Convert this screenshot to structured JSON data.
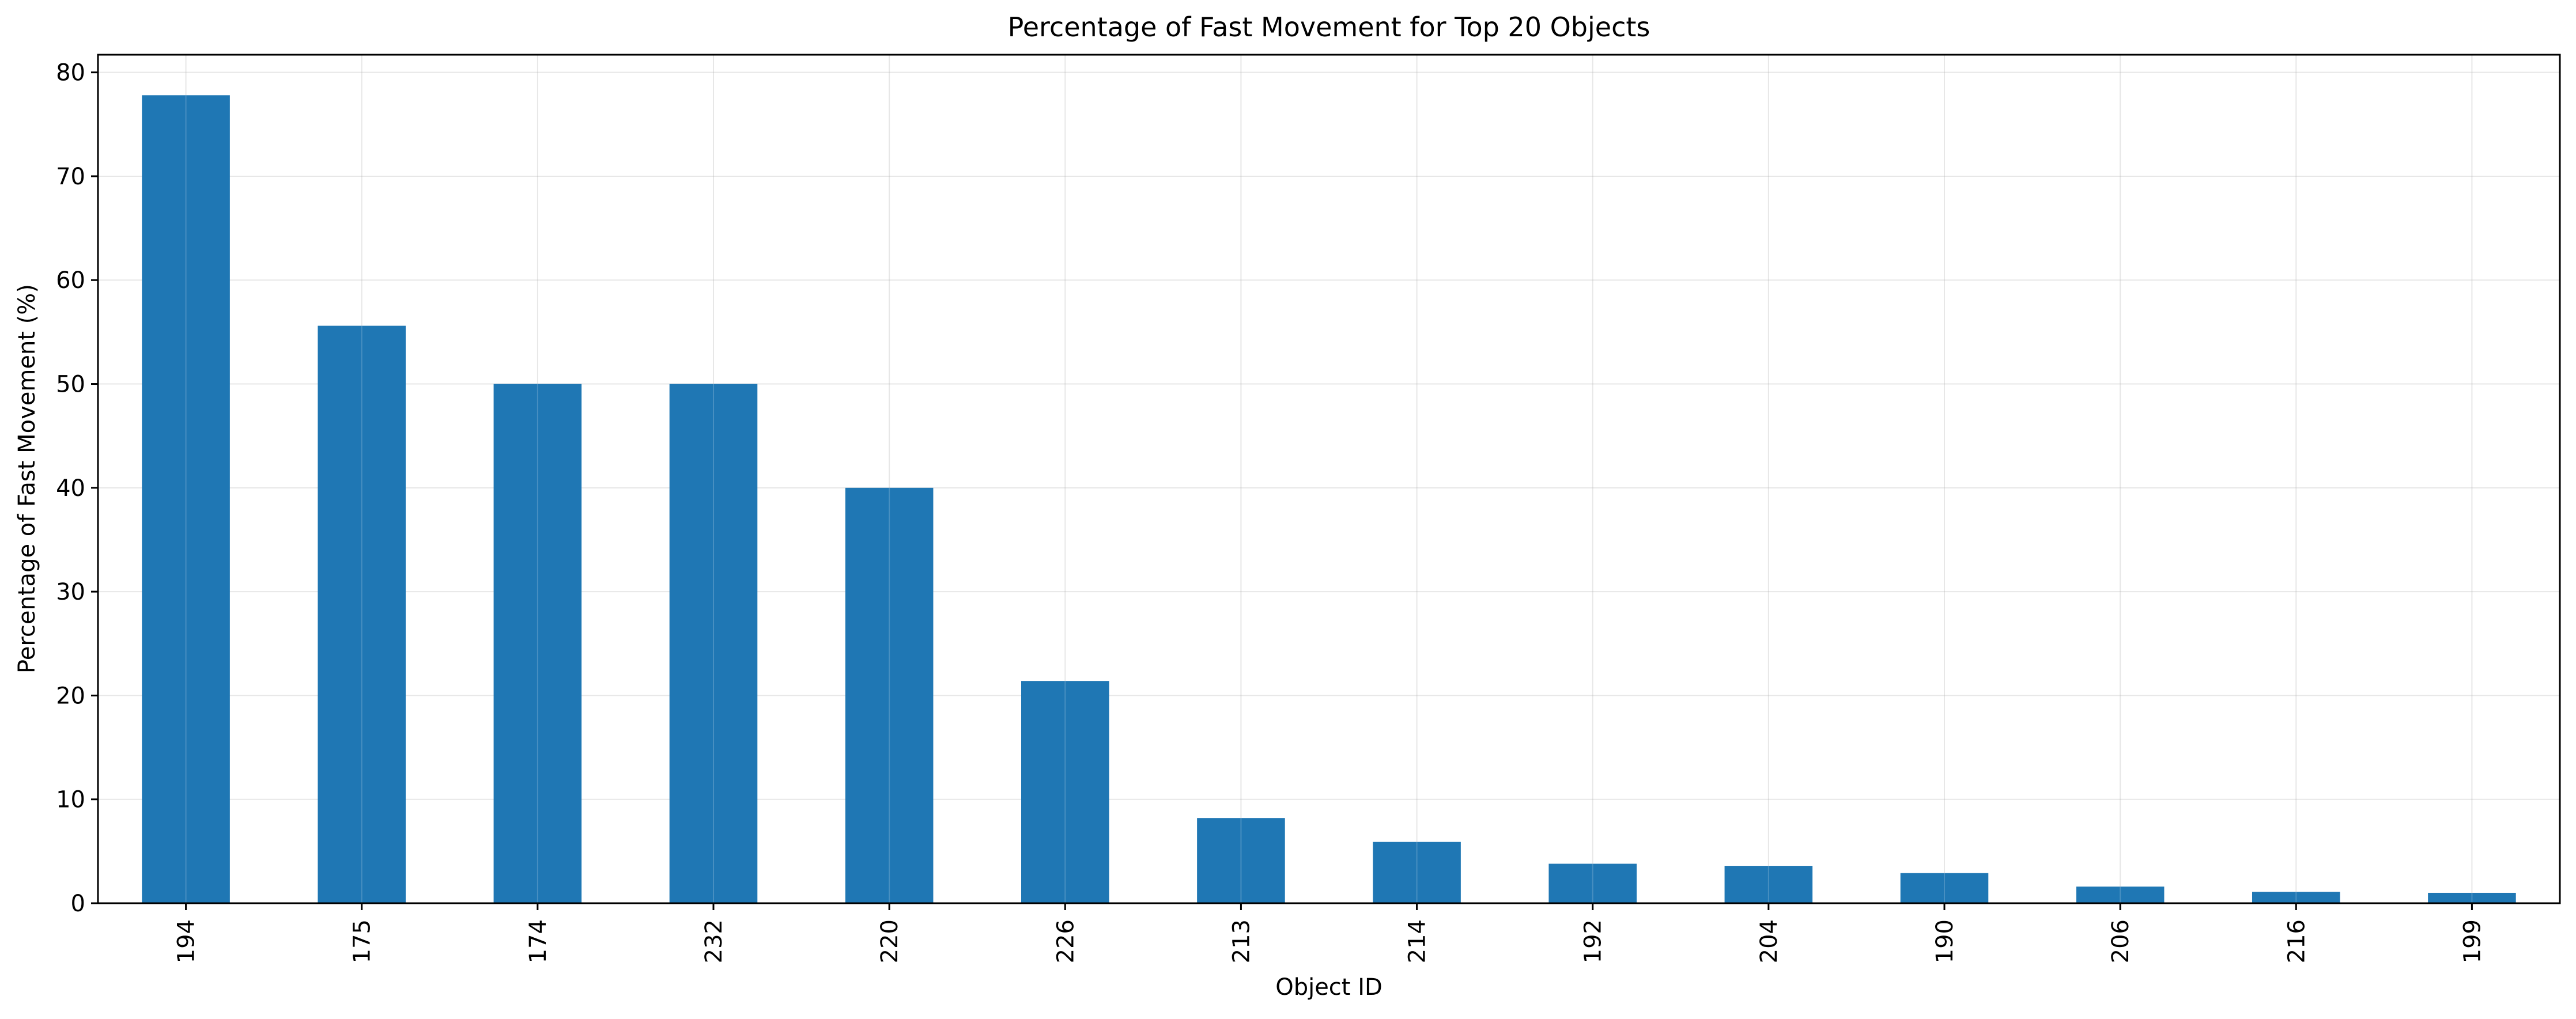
{
  "chart_data": {
    "type": "bar",
    "title": "Percentage of Fast Movement for Top 20 Objects",
    "xlabel": "Object ID",
    "ylabel": "Percentage of Fast Movement (%)",
    "categories": [
      "194",
      "175",
      "174",
      "232",
      "220",
      "226",
      "213",
      "214",
      "192",
      "204",
      "190",
      "206",
      "216",
      "199"
    ],
    "values": [
      77.8,
      55.6,
      50.0,
      50.0,
      40.0,
      21.4,
      8.2,
      5.9,
      3.8,
      3.6,
      2.9,
      1.6,
      1.1,
      1.0
    ],
    "ylim": [
      0,
      81.7
    ],
    "yticks": [
      0,
      10,
      20,
      30,
      40,
      50,
      60,
      70,
      80
    ],
    "grid": true,
    "legend": "none",
    "bar_color": "#1f77b4",
    "grid_color": "#b0b0b0"
  }
}
